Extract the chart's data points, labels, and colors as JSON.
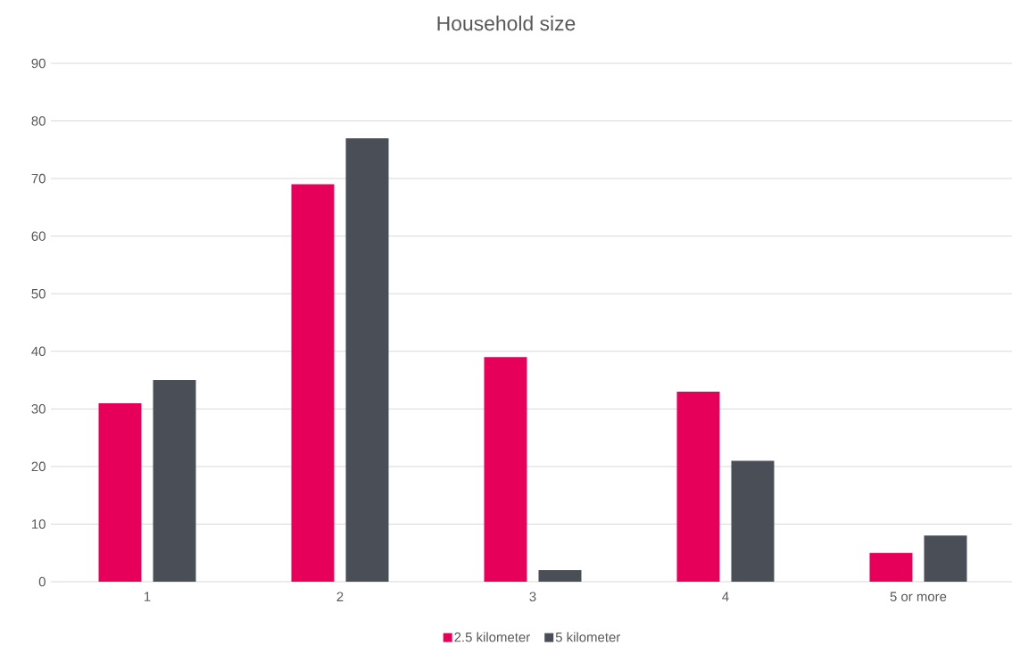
{
  "chart_data": {
    "type": "bar",
    "title": "Household size",
    "categories": [
      "1",
      "2",
      "3",
      "4",
      "5 or more"
    ],
    "series": [
      {
        "name": "2.5 kilometer",
        "color": "#e6005a",
        "values": [
          31,
          69,
          39,
          33,
          5
        ]
      },
      {
        "name": "5 kilometer",
        "color": "#4a4f57",
        "values": [
          35,
          77,
          2,
          21,
          8
        ]
      }
    ],
    "ylim": [
      0,
      90
    ],
    "yticks": [
      0,
      10,
      20,
      30,
      40,
      50,
      60,
      70,
      80,
      90
    ],
    "grid": "y",
    "legend": "bottom"
  }
}
